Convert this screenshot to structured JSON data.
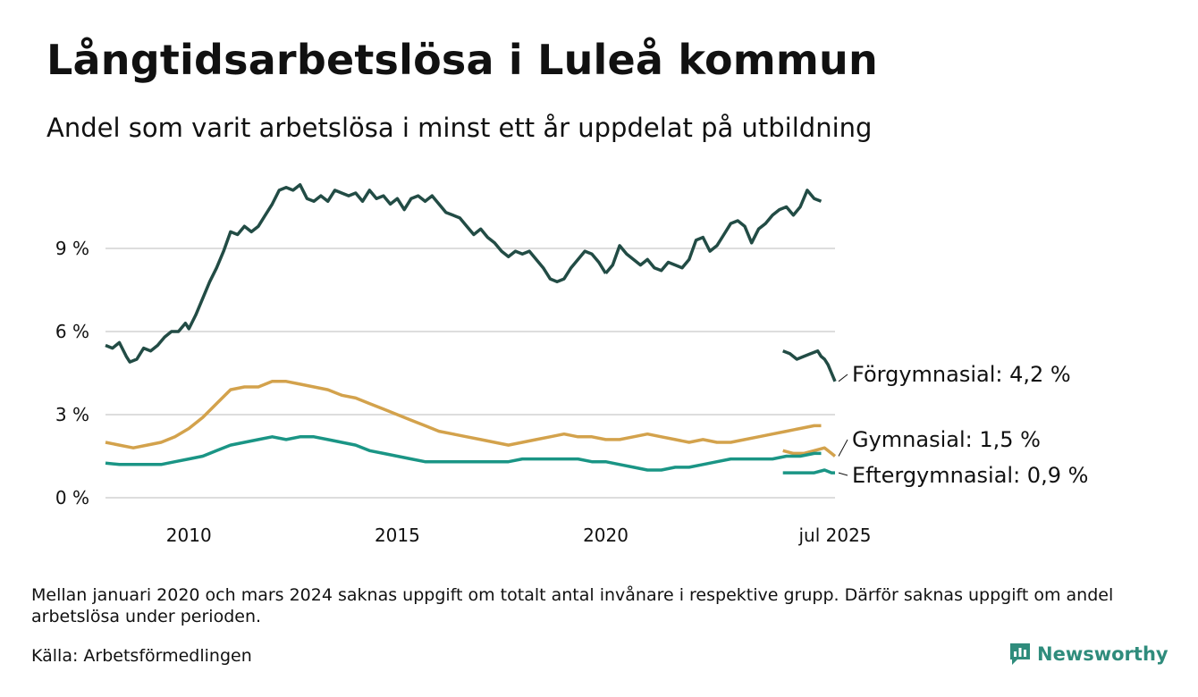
{
  "title": "Långtidsarbetslösa i Luleå kommun",
  "subtitle": "Andel som varit arbetslösa i minst ett år uppdelat på utbildning",
  "note": "Mellan januari 2020 och mars 2024 saknas uppgift om totalt antal invånare i respektive grupp. Därför saknas uppgift om andel arbetslösa under perioden.",
  "source": "Källa: Arbetsförmedlingen",
  "brand": "Newsworthy",
  "colors": {
    "forgymnasial": "#224c45",
    "gymnasial": "#d3a24c",
    "eftergymnasial": "#1a9585",
    "grid": "#dddddd",
    "brand": "#2f8c7c"
  },
  "chart_data": {
    "type": "line",
    "title": "Långtidsarbetslösa i Luleå kommun",
    "subtitle": "Andel som varit arbetslösa i minst ett år uppdelat på utbildning",
    "y_unit": "%",
    "ylim": [
      0,
      12
    ],
    "y_ticks": [
      0,
      3,
      6,
      9
    ],
    "y_tick_labels": [
      "0 %",
      "3 %",
      "6 %",
      "9 %"
    ],
    "x_range": [
      "2008-01",
      "2025-07"
    ],
    "x_ticks": [
      "2010-01",
      "2015-01",
      "2020-01",
      "2025-07"
    ],
    "x_tick_labels": [
      "2010",
      "2015",
      "2020",
      "jul 2025"
    ],
    "grid": "horizontal",
    "series": [
      {
        "name": "Förgymnasial",
        "color_key": "forgymnasial",
        "end_label": "Förgymnasial: 4,2 %",
        "segments": [
          [
            [
              "2008-01",
              5.5
            ],
            [
              "2008-03",
              5.4
            ],
            [
              "2008-05",
              5.6
            ],
            [
              "2008-07",
              5.1
            ],
            [
              "2008-08",
              4.9
            ],
            [
              "2008-10",
              5.0
            ],
            [
              "2008-12",
              5.4
            ],
            [
              "2009-02",
              5.3
            ],
            [
              "2009-04",
              5.5
            ],
            [
              "2009-06",
              5.8
            ],
            [
              "2009-08",
              6.0
            ],
            [
              "2009-10",
              6.0
            ],
            [
              "2009-12",
              6.3
            ],
            [
              "2010-01",
              6.1
            ],
            [
              "2010-03",
              6.6
            ],
            [
              "2010-05",
              7.2
            ],
            [
              "2010-07",
              7.8
            ],
            [
              "2010-09",
              8.3
            ],
            [
              "2010-11",
              8.9
            ],
            [
              "2011-01",
              9.6
            ],
            [
              "2011-03",
              9.5
            ],
            [
              "2011-05",
              9.8
            ],
            [
              "2011-07",
              9.6
            ],
            [
              "2011-09",
              9.8
            ],
            [
              "2011-11",
              10.2
            ],
            [
              "2012-01",
              10.6
            ],
            [
              "2012-03",
              11.1
            ],
            [
              "2012-05",
              11.2
            ],
            [
              "2012-07",
              11.1
            ],
            [
              "2012-09",
              11.3
            ],
            [
              "2012-11",
              10.8
            ],
            [
              "2013-01",
              10.7
            ],
            [
              "2013-03",
              10.9
            ],
            [
              "2013-05",
              10.7
            ],
            [
              "2013-07",
              11.1
            ],
            [
              "2013-09",
              11.0
            ],
            [
              "2013-11",
              10.9
            ],
            [
              "2014-01",
              11.0
            ],
            [
              "2014-03",
              10.7
            ],
            [
              "2014-05",
              11.1
            ],
            [
              "2014-07",
              10.8
            ],
            [
              "2014-09",
              10.9
            ],
            [
              "2014-11",
              10.6
            ],
            [
              "2015-01",
              10.8
            ],
            [
              "2015-03",
              10.4
            ],
            [
              "2015-05",
              10.8
            ],
            [
              "2015-07",
              10.9
            ],
            [
              "2015-09",
              10.7
            ],
            [
              "2015-11",
              10.9
            ],
            [
              "2016-01",
              10.6
            ],
            [
              "2016-03",
              10.3
            ],
            [
              "2016-05",
              10.2
            ],
            [
              "2016-07",
              10.1
            ],
            [
              "2016-09",
              9.8
            ],
            [
              "2016-11",
              9.5
            ],
            [
              "2017-01",
              9.7
            ],
            [
              "2017-03",
              9.4
            ],
            [
              "2017-05",
              9.2
            ],
            [
              "2017-07",
              8.9
            ],
            [
              "2017-09",
              8.7
            ],
            [
              "2017-11",
              8.9
            ],
            [
              "2018-01",
              8.8
            ],
            [
              "2018-03",
              8.9
            ],
            [
              "2018-05",
              8.6
            ],
            [
              "2018-07",
              8.3
            ],
            [
              "2018-09",
              7.9
            ],
            [
              "2018-11",
              7.8
            ],
            [
              "2019-01",
              7.9
            ],
            [
              "2019-03",
              8.3
            ],
            [
              "2019-05",
              8.6
            ],
            [
              "2019-07",
              8.9
            ],
            [
              "2019-09",
              8.8
            ],
            [
              "2019-11",
              8.5
            ],
            [
              "2020-01",
              8.1
            ]
          ],
          [
            [
              "2020-01",
              8.1
            ],
            [
              "2020-03",
              8.4
            ],
            [
              "2020-05",
              9.1
            ],
            [
              "2020-07",
              8.8
            ],
            [
              "2020-09",
              8.6
            ],
            [
              "2020-11",
              8.4
            ],
            [
              "2021-01",
              8.6
            ],
            [
              "2021-03",
              8.3
            ],
            [
              "2021-05",
              8.2
            ],
            [
              "2021-07",
              8.5
            ],
            [
              "2021-09",
              8.4
            ],
            [
              "2021-11",
              8.3
            ],
            [
              "2022-01",
              8.6
            ],
            [
              "2022-03",
              9.3
            ],
            [
              "2022-05",
              9.4
            ],
            [
              "2022-07",
              8.9
            ],
            [
              "2022-09",
              9.1
            ],
            [
              "2022-11",
              9.5
            ],
            [
              "2023-01",
              9.9
            ],
            [
              "2023-03",
              10.0
            ],
            [
              "2023-05",
              9.8
            ],
            [
              "2023-07",
              9.2
            ],
            [
              "2023-09",
              9.7
            ],
            [
              "2023-11",
              9.9
            ],
            [
              "2024-01",
              10.2
            ],
            [
              "2024-03",
              10.4
            ],
            [
              "2024-05",
              10.5
            ],
            [
              "2024-07",
              10.2
            ],
            [
              "2024-09",
              10.5
            ],
            [
              "2024-11",
              11.1
            ],
            [
              "2025-01",
              10.8
            ],
            [
              "2025-03",
              10.7
            ]
          ]
        ],
        "late_segment": [
          [
            "2024-04",
            5.3
          ],
          [
            "2024-06",
            5.2
          ],
          [
            "2024-08",
            5.0
          ],
          [
            "2024-10",
            5.1
          ],
          [
            "2024-12",
            5.2
          ],
          [
            "2025-02",
            5.3
          ],
          [
            "2025-03",
            5.1
          ],
          [
            "2025-04",
            5.0
          ],
          [
            "2025-05",
            4.8
          ],
          [
            "2025-06",
            4.5
          ],
          [
            "2025-07",
            4.2
          ]
        ]
      },
      {
        "name": "Gymnasial",
        "color_key": "gymnasial",
        "end_label": "Gymnasial: 1,5 %",
        "segments": [
          [
            [
              "2008-01",
              2.0
            ],
            [
              "2008-05",
              1.9
            ],
            [
              "2008-09",
              1.8
            ],
            [
              "2009-01",
              1.9
            ],
            [
              "2009-05",
              2.0
            ],
            [
              "2009-09",
              2.2
            ],
            [
              "2010-01",
              2.5
            ],
            [
              "2010-05",
              2.9
            ],
            [
              "2010-09",
              3.4
            ],
            [
              "2011-01",
              3.9
            ],
            [
              "2011-05",
              4.0
            ],
            [
              "2011-09",
              4.0
            ],
            [
              "2012-01",
              4.2
            ],
            [
              "2012-05",
              4.2
            ],
            [
              "2012-09",
              4.1
            ],
            [
              "2013-01",
              4.0
            ],
            [
              "2013-05",
              3.9
            ],
            [
              "2013-09",
              3.7
            ],
            [
              "2014-01",
              3.6
            ],
            [
              "2014-05",
              3.4
            ],
            [
              "2014-09",
              3.2
            ],
            [
              "2015-01",
              3.0
            ],
            [
              "2015-05",
              2.8
            ],
            [
              "2015-09",
              2.6
            ],
            [
              "2016-01",
              2.4
            ],
            [
              "2016-05",
              2.3
            ],
            [
              "2016-09",
              2.2
            ],
            [
              "2017-01",
              2.1
            ],
            [
              "2017-05",
              2.0
            ],
            [
              "2017-09",
              1.9
            ],
            [
              "2018-01",
              2.0
            ],
            [
              "2018-05",
              2.1
            ],
            [
              "2018-09",
              2.2
            ],
            [
              "2019-01",
              2.3
            ],
            [
              "2019-05",
              2.2
            ],
            [
              "2019-09",
              2.2
            ],
            [
              "2020-01",
              2.1
            ],
            [
              "2020-05",
              2.1
            ],
            [
              "2020-09",
              2.2
            ],
            [
              "2021-01",
              2.3
            ],
            [
              "2021-05",
              2.2
            ],
            [
              "2021-09",
              2.1
            ],
            [
              "2022-01",
              2.0
            ],
            [
              "2022-05",
              2.1
            ],
            [
              "2022-09",
              2.0
            ],
            [
              "2023-01",
              2.0
            ],
            [
              "2023-05",
              2.1
            ],
            [
              "2023-09",
              2.2
            ],
            [
              "2024-01",
              2.3
            ],
            [
              "2024-05",
              2.4
            ],
            [
              "2024-09",
              2.5
            ],
            [
              "2025-01",
              2.6
            ],
            [
              "2025-03",
              2.6
            ]
          ]
        ],
        "late_segment": [
          [
            "2024-04",
            1.7
          ],
          [
            "2024-07",
            1.6
          ],
          [
            "2024-10",
            1.6
          ],
          [
            "2025-01",
            1.7
          ],
          [
            "2025-04",
            1.8
          ],
          [
            "2025-06",
            1.6
          ],
          [
            "2025-07",
            1.5
          ]
        ]
      },
      {
        "name": "Eftergymnasial",
        "color_key": "eftergymnasial",
        "end_label": "Eftergymnasial: 0,9 %",
        "segments": [
          [
            [
              "2008-01",
              1.25
            ],
            [
              "2008-05",
              1.2
            ],
            [
              "2008-09",
              1.2
            ],
            [
              "2009-01",
              1.2
            ],
            [
              "2009-05",
              1.2
            ],
            [
              "2009-09",
              1.3
            ],
            [
              "2010-01",
              1.4
            ],
            [
              "2010-05",
              1.5
            ],
            [
              "2010-09",
              1.7
            ],
            [
              "2011-01",
              1.9
            ],
            [
              "2011-05",
              2.0
            ],
            [
              "2011-09",
              2.1
            ],
            [
              "2012-01",
              2.2
            ],
            [
              "2012-05",
              2.1
            ],
            [
              "2012-09",
              2.2
            ],
            [
              "2013-01",
              2.2
            ],
            [
              "2013-05",
              2.1
            ],
            [
              "2013-09",
              2.0
            ],
            [
              "2014-01",
              1.9
            ],
            [
              "2014-05",
              1.7
            ],
            [
              "2014-09",
              1.6
            ],
            [
              "2015-01",
              1.5
            ],
            [
              "2015-05",
              1.4
            ],
            [
              "2015-09",
              1.3
            ],
            [
              "2016-01",
              1.3
            ],
            [
              "2016-05",
              1.3
            ],
            [
              "2016-09",
              1.3
            ],
            [
              "2017-01",
              1.3
            ],
            [
              "2017-05",
              1.3
            ],
            [
              "2017-09",
              1.3
            ],
            [
              "2018-01",
              1.4
            ],
            [
              "2018-05",
              1.4
            ],
            [
              "2018-09",
              1.4
            ],
            [
              "2019-01",
              1.4
            ],
            [
              "2019-05",
              1.4
            ],
            [
              "2019-09",
              1.3
            ],
            [
              "2020-01",
              1.3
            ],
            [
              "2020-05",
              1.2
            ],
            [
              "2020-09",
              1.1
            ],
            [
              "2021-01",
              1.0
            ],
            [
              "2021-05",
              1.0
            ],
            [
              "2021-09",
              1.1
            ],
            [
              "2022-01",
              1.1
            ],
            [
              "2022-05",
              1.2
            ],
            [
              "2022-09",
              1.3
            ],
            [
              "2023-01",
              1.4
            ],
            [
              "2023-05",
              1.4
            ],
            [
              "2023-09",
              1.4
            ],
            [
              "2024-01",
              1.4
            ],
            [
              "2024-05",
              1.5
            ],
            [
              "2024-09",
              1.5
            ],
            [
              "2025-01",
              1.6
            ],
            [
              "2025-03",
              1.6
            ]
          ]
        ],
        "late_segment": [
          [
            "2024-04",
            0.9
          ],
          [
            "2024-07",
            0.9
          ],
          [
            "2024-10",
            0.9
          ],
          [
            "2025-01",
            0.9
          ],
          [
            "2025-04",
            1.0
          ],
          [
            "2025-06",
            0.9
          ],
          [
            "2025-07",
            0.9
          ]
        ]
      }
    ]
  }
}
